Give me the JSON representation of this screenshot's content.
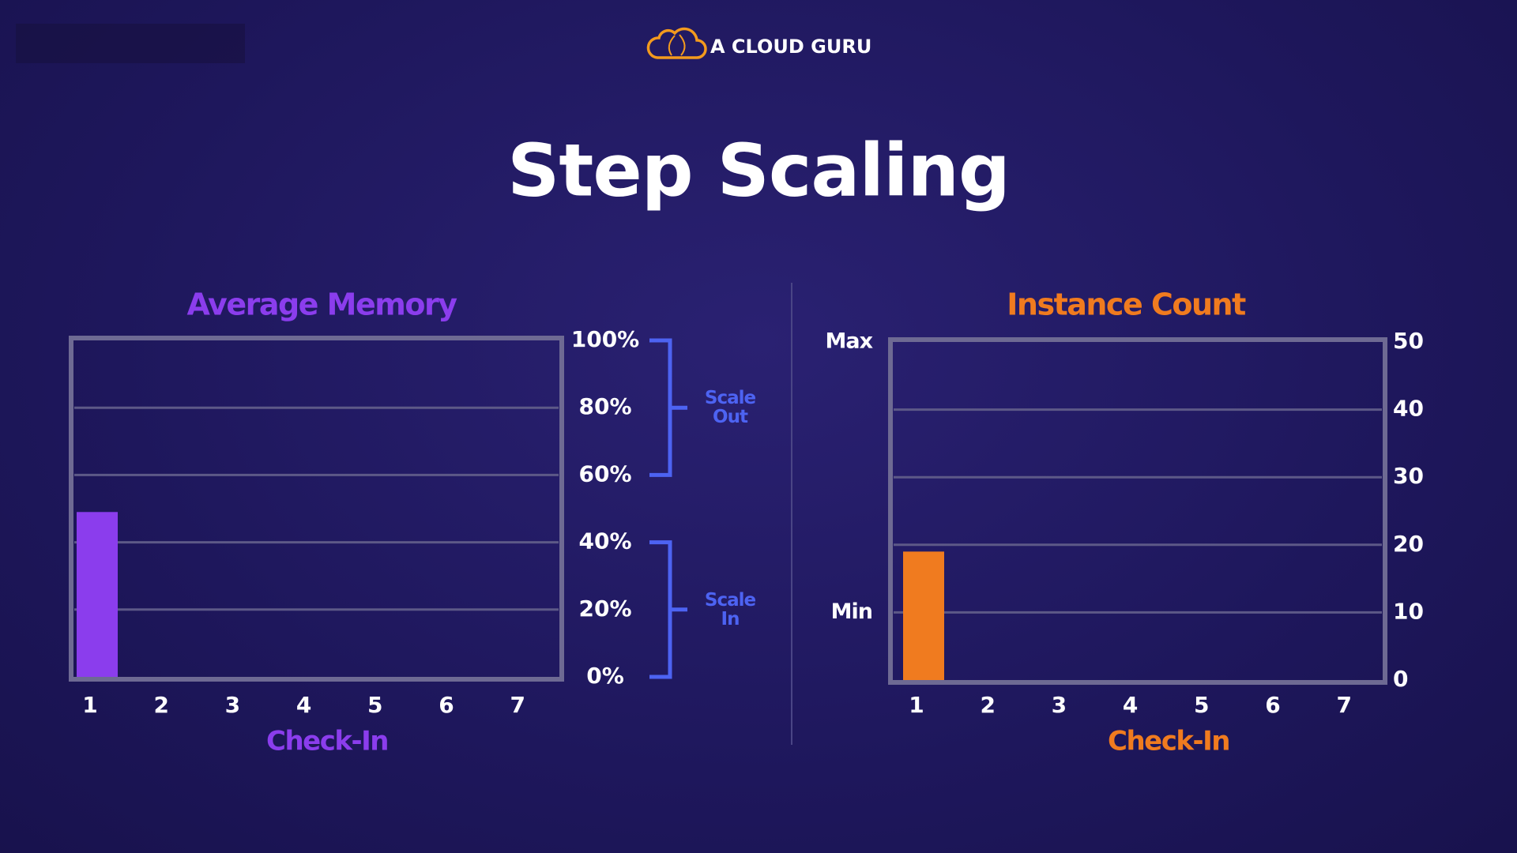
{
  "header": {
    "brand": "A CLOUD GURU",
    "title": "Step Scaling"
  },
  "chart_data": [
    {
      "type": "bar",
      "title": "Average Memory",
      "x_label": "Check-In",
      "categories": [
        "1",
        "2",
        "3",
        "4",
        "5",
        "6",
        "7"
      ],
      "values": [
        49,
        null,
        null,
        null,
        null,
        null,
        null
      ],
      "color": "#8b3ded",
      "ylim": [
        0,
        100
      ],
      "yticks": [
        {
          "value": 0,
          "label": "0%"
        },
        {
          "value": 20,
          "label": "20%"
        },
        {
          "value": 40,
          "label": "40%"
        },
        {
          "value": 60,
          "label": "60%"
        },
        {
          "value": 80,
          "label": "80%"
        },
        {
          "value": 100,
          "label": "100%"
        }
      ],
      "grid": true,
      "annotations": [
        {
          "text": "Scale Out",
          "range": [
            60,
            100
          ]
        },
        {
          "text": "Scale In",
          "range": [
            0,
            40
          ]
        }
      ]
    },
    {
      "type": "bar",
      "title": "Instance Count",
      "x_label": "Check-In",
      "categories": [
        "1",
        "2",
        "3",
        "4",
        "5",
        "6",
        "7"
      ],
      "values": [
        19,
        null,
        null,
        null,
        null,
        null,
        null
      ],
      "color": "#f07b1f",
      "ylim": [
        0,
        50
      ],
      "yticks": [
        0,
        10,
        20,
        30,
        40,
        50
      ],
      "grid": true,
      "annotations": [
        {
          "text": "Max",
          "value": 50
        },
        {
          "text": "Min",
          "value": 10
        }
      ]
    }
  ]
}
